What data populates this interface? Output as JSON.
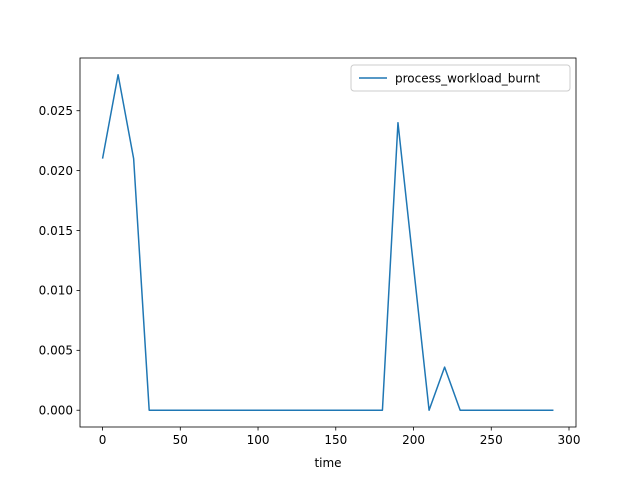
{
  "chart_data": {
    "type": "line",
    "title": "",
    "xlabel": "time",
    "ylabel": "",
    "xlim": [
      -14.5,
      304.5
    ],
    "ylim": [
      -0.0014,
      0.0294
    ],
    "xticks": [
      0,
      50,
      100,
      150,
      200,
      250,
      300
    ],
    "xtick_labels": [
      "0",
      "50",
      "100",
      "150",
      "200",
      "250",
      "300"
    ],
    "yticks": [
      0.0,
      0.005,
      0.01,
      0.015,
      0.02,
      0.025
    ],
    "ytick_labels": [
      "0.000",
      "0.005",
      "0.010",
      "0.015",
      "0.020",
      "0.025"
    ],
    "grid": false,
    "legend_position": "top-right",
    "x": [
      0,
      10,
      20,
      30,
      40,
      50,
      60,
      70,
      80,
      90,
      100,
      110,
      120,
      130,
      140,
      150,
      160,
      170,
      180,
      190,
      200,
      210,
      220,
      230,
      240,
      250,
      260,
      270,
      280,
      290
    ],
    "series": [
      {
        "name": "process_workload_burnt",
        "color": "#1f77b4",
        "values": [
          0.021,
          0.028,
          0.021,
          0.0,
          0.0,
          0.0,
          0.0,
          0.0,
          0.0,
          0.0,
          0.0,
          0.0,
          0.0,
          0.0,
          0.0,
          0.0,
          0.0,
          0.0,
          0.0,
          0.024,
          0.012,
          0.0,
          0.0036,
          0.0,
          0.0,
          0.0,
          0.0,
          0.0,
          0.0,
          0.0
        ]
      }
    ]
  }
}
